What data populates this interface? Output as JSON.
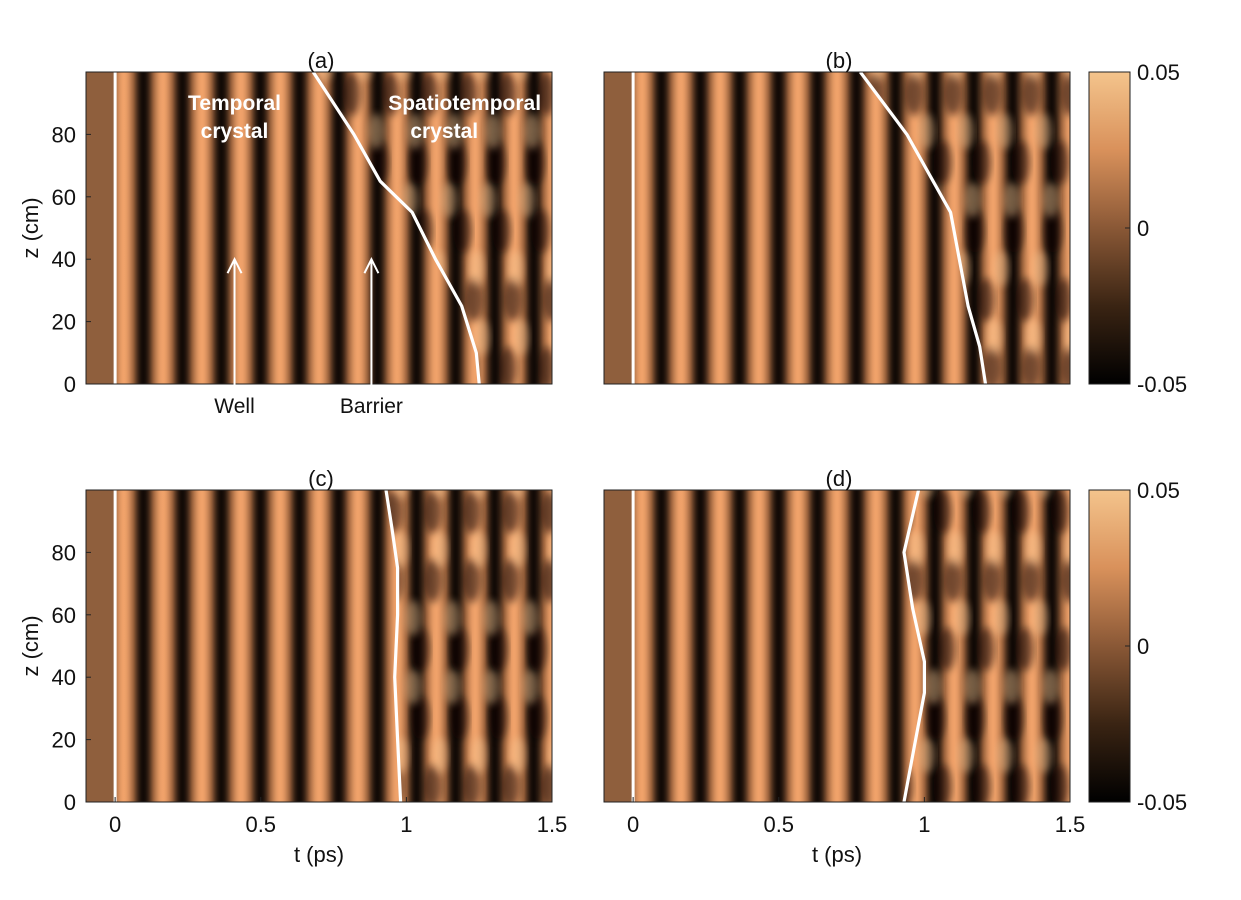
{
  "chart_data": {
    "type": "heatmap",
    "colorbar": {
      "min": -0.05,
      "max": 0.05,
      "tick_labels": [
        "0.05",
        "0",
        "-0.05"
      ],
      "tick_values": [
        0.05,
        0,
        -0.05
      ],
      "colors": [
        "#000000",
        "#8a5836",
        "#f4c48c"
      ]
    },
    "x_ticks": [
      0,
      0.5,
      1,
      1.5
    ],
    "x_tick_labels": [
      "0",
      "0.5",
      "1",
      "1.5"
    ],
    "y_ticks": [
      0,
      20,
      40,
      60,
      80
    ],
    "y_tick_labels": [
      "0",
      "20",
      "40",
      "60",
      "80"
    ],
    "xlabel": "t (ps)",
    "ylabel": "z (cm)",
    "xlim": [
      -0.1,
      1.5
    ],
    "ylim": [
      0,
      100
    ],
    "panels": [
      {
        "label": "(a)",
        "period_ps": 0.134,
        "boundary": [
          [
            1.25,
            0
          ],
          [
            1.24,
            10
          ],
          [
            1.19,
            25
          ],
          [
            1.1,
            40
          ],
          [
            1.02,
            55
          ],
          [
            0.91,
            65
          ],
          [
            0.82,
            80
          ],
          [
            0.68,
            100
          ]
        ],
        "annotations": {
          "left_title": [
            "Temporal",
            "crystal"
          ],
          "right_title": [
            "Spatiotemporal",
            "crystal"
          ],
          "well": {
            "label": "Well",
            "t": 0.41,
            "z": 40
          },
          "barrier": {
            "label": "Barrier",
            "t": 0.88,
            "z": 40
          }
        }
      },
      {
        "label": "(b)",
        "period_ps": 0.134,
        "boundary": [
          [
            1.21,
            0
          ],
          [
            1.19,
            12
          ],
          [
            1.15,
            25
          ],
          [
            1.12,
            40
          ],
          [
            1.09,
            55
          ],
          [
            1.03,
            65
          ],
          [
            0.94,
            80
          ],
          [
            0.78,
            100
          ]
        ]
      },
      {
        "label": "(c)",
        "period_ps": 0.134,
        "boundary": [
          [
            0.98,
            0
          ],
          [
            0.97,
            20
          ],
          [
            0.96,
            40
          ],
          [
            0.97,
            60
          ],
          [
            0.97,
            75
          ],
          [
            0.95,
            88
          ],
          [
            0.93,
            100
          ]
        ]
      },
      {
        "label": "(d)",
        "period_ps": 0.134,
        "boundary": [
          [
            0.93,
            0
          ],
          [
            0.96,
            15
          ],
          [
            1.0,
            35
          ],
          [
            1.0,
            45
          ],
          [
            0.96,
            62
          ],
          [
            0.93,
            80
          ],
          [
            0.96,
            92
          ],
          [
            0.98,
            100
          ]
        ]
      }
    ]
  }
}
